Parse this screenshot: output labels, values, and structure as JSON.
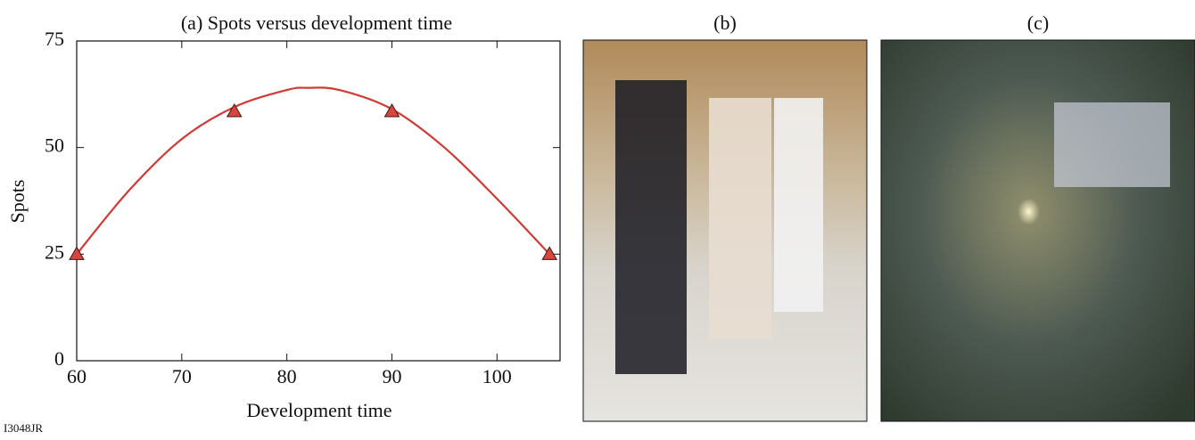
{
  "chart_data": {
    "type": "line",
    "title": "(a) Spots versus development time",
    "x_label": "Development time",
    "y_label": "Spots",
    "xlim": [
      60,
      106
    ],
    "ylim": [
      0,
      75
    ],
    "xticks": [
      60,
      70,
      80,
      90,
      100
    ],
    "yticks": [
      0,
      25,
      50,
      75
    ],
    "series": [
      {
        "x": [
          60,
          75,
          90,
          105
        ],
        "values": [
          25,
          58.5,
          58.5,
          25
        ],
        "color": "#d9443c",
        "marker": "triangle"
      },
      {
        "x": [
          60,
          65,
          70,
          75,
          80,
          82,
          85,
          90,
          95,
          100,
          105
        ],
        "values": [
          25,
          40,
          52,
          59.5,
          63.5,
          64,
          63.5,
          59,
          50,
          38,
          25
        ],
        "color": "#d03a35",
        "marker": "none"
      }
    ]
  },
  "panels": [
    {
      "label": "(b)"
    },
    {
      "label": "(c)"
    }
  ],
  "figure_id": "I3048JR"
}
